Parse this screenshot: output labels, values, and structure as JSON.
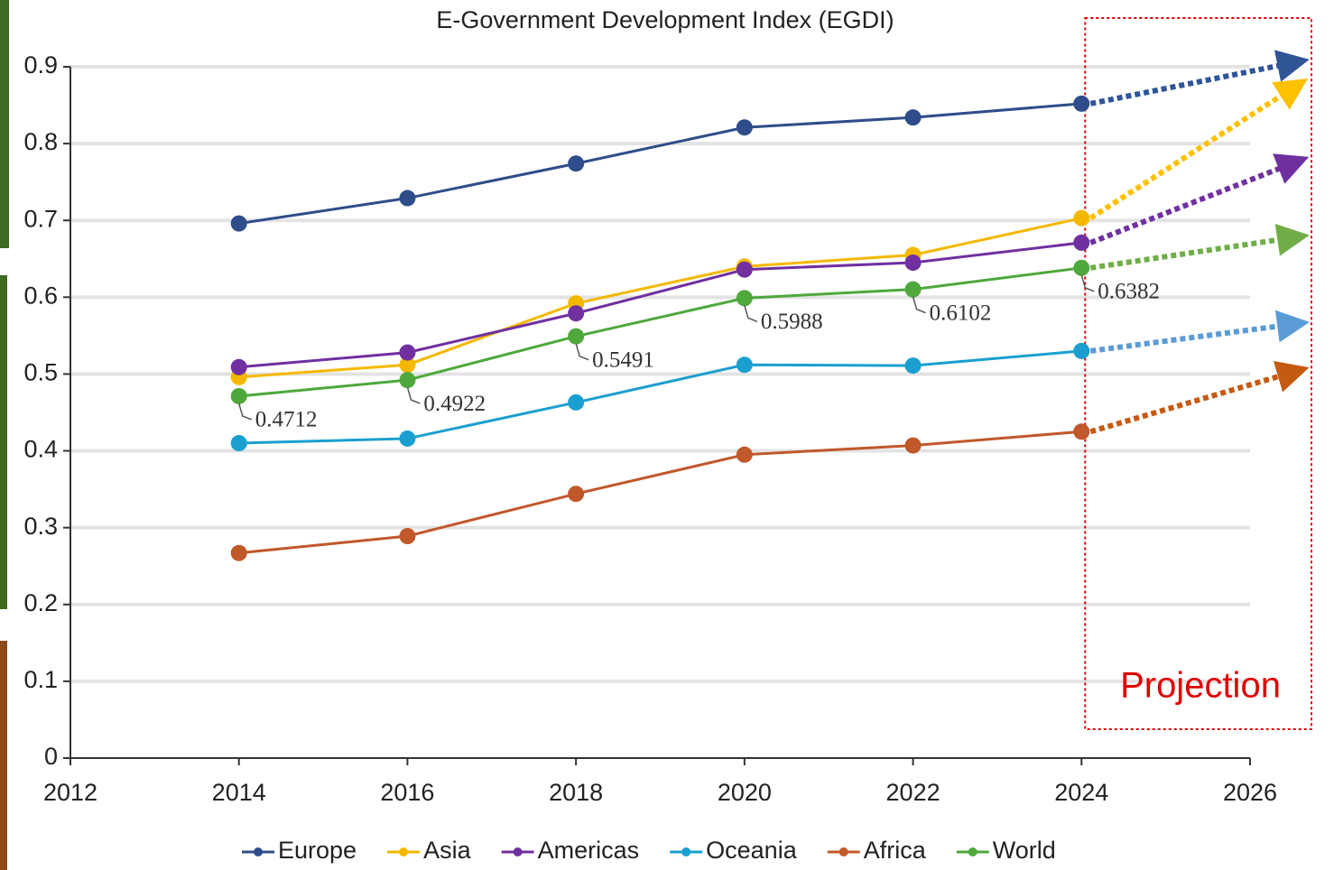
{
  "chart_data": {
    "type": "line",
    "title": "E-Government Development Index (EGDI)",
    "x": [
      2014,
      2016,
      2018,
      2020,
      2022,
      2024
    ],
    "xlim": [
      2012,
      2026
    ],
    "xticks": [
      2012,
      2014,
      2016,
      2018,
      2020,
      2022,
      2024,
      2026
    ],
    "ylim": [
      0,
      0.9
    ],
    "yticks": [
      0,
      0.1,
      0.2,
      0.3,
      0.4,
      0.5,
      0.6,
      0.7,
      0.8,
      0.9
    ],
    "grid": true,
    "legend": "bottom",
    "series": [
      {
        "name": "Europe",
        "color": "#2e4d8a",
        "values": [
          0.696,
          0.729,
          0.774,
          0.821,
          0.834,
          0.852
        ],
        "projected": 0.907,
        "projection_color": "#2f5597"
      },
      {
        "name": "Asia",
        "color": "#f5b800",
        "values": [
          0.496,
          0.512,
          0.592,
          0.64,
          0.655,
          0.703
        ],
        "projected": 0.878,
        "projection_color": "#ffc000"
      },
      {
        "name": "Americas",
        "color": "#7030a0",
        "values": [
          0.509,
          0.528,
          0.579,
          0.636,
          0.645,
          0.671
        ],
        "projected": 0.778,
        "projection_color": "#7030a0"
      },
      {
        "name": "Oceania",
        "color": "#1a9fd0",
        "values": [
          0.41,
          0.416,
          0.463,
          0.512,
          0.511,
          0.53
        ],
        "projected": 0.566,
        "projection_color": "#5b9bd5"
      },
      {
        "name": "Africa",
        "color": "#c0582a",
        "values": [
          0.267,
          0.289,
          0.344,
          0.395,
          0.407,
          0.425
        ],
        "projected": 0.505,
        "projection_color": "#c55a11"
      },
      {
        "name": "World",
        "color": "#4ea83c",
        "values": [
          0.4712,
          0.4922,
          0.5491,
          0.5988,
          0.6102,
          0.6382
        ],
        "data_labels": true,
        "projected": 0.679,
        "projection_color": "#70ad47"
      }
    ],
    "projection": {
      "label": "Projection",
      "x": 2026.6,
      "color": "#e00000"
    }
  }
}
